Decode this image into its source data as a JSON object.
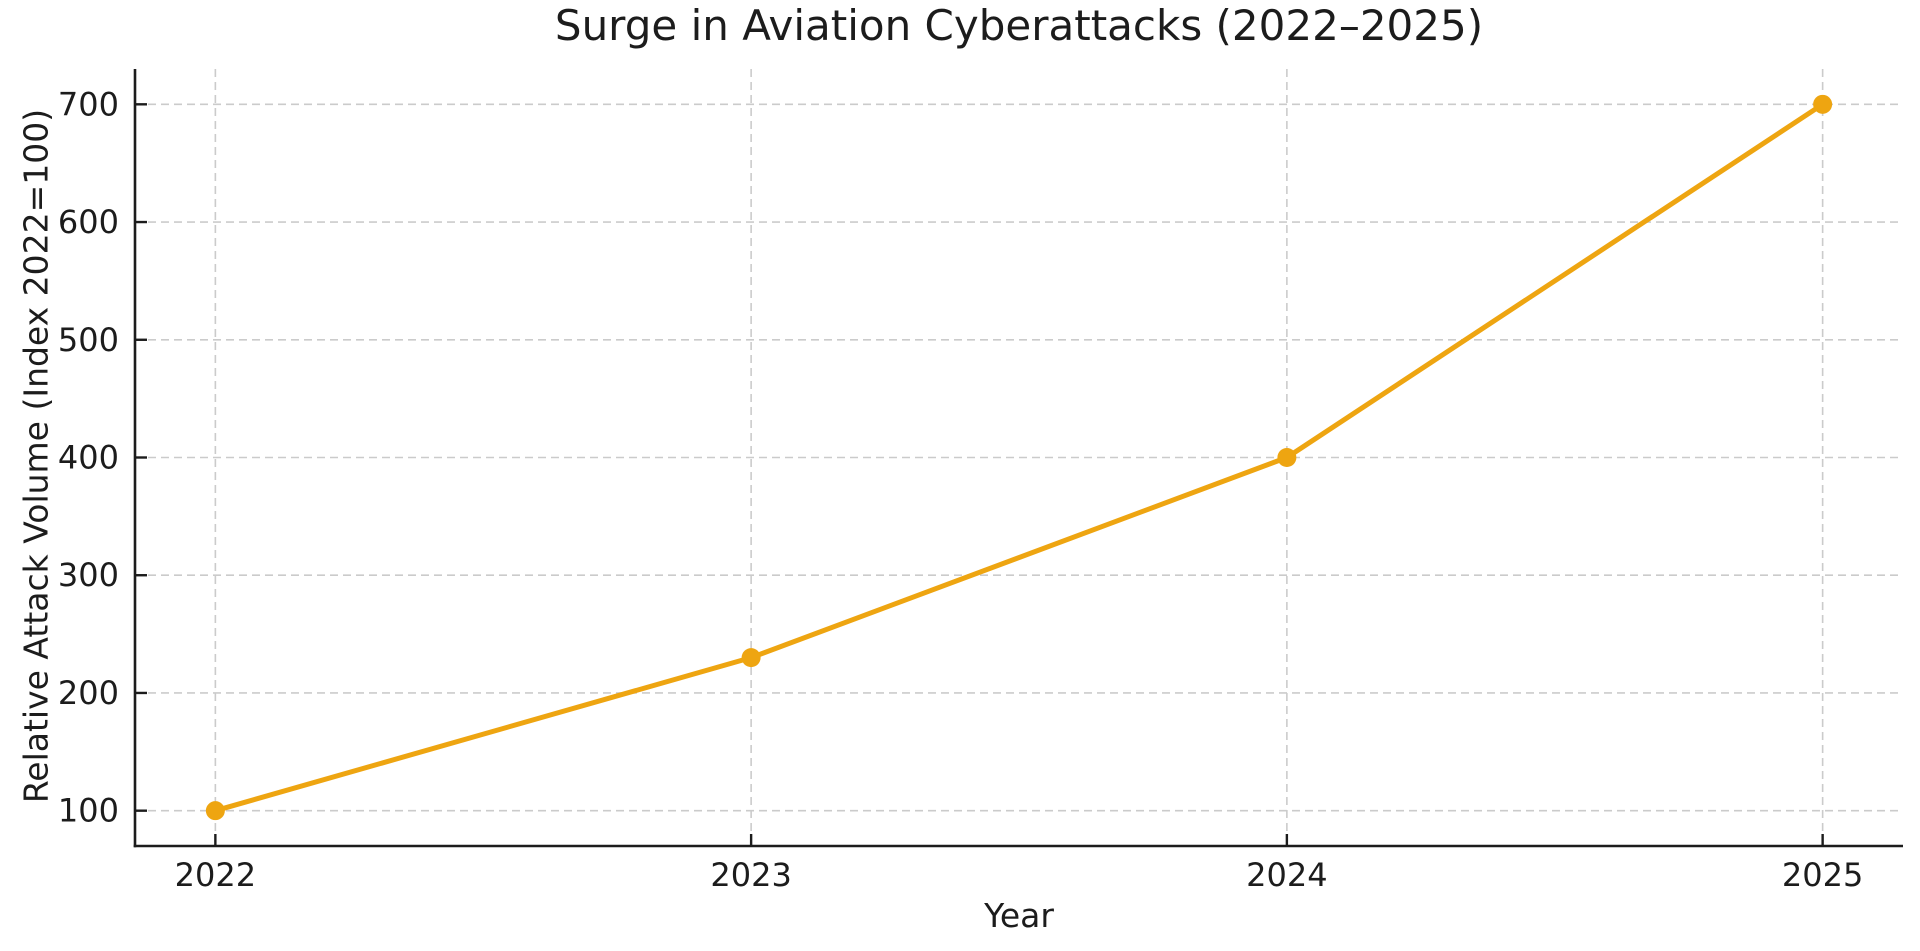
{
  "chart_data": {
    "type": "line",
    "title": "Surge in Aviation Cyberattacks (2022–2025)",
    "xlabel": "Year",
    "ylabel": "Relative Attack Volume (Index 2022=100)",
    "x": [
      2022,
      2023,
      2024,
      2025
    ],
    "series": [
      {
        "name": "Relative Attack Volume (Index 2022=100)",
        "values": [
          100,
          230,
          400,
          700
        ]
      }
    ],
    "xticks": [
      2022,
      2023,
      2024,
      2025
    ],
    "yticks": [
      100,
      200,
      300,
      400,
      500,
      600,
      700
    ],
    "xlim": [
      2021.85,
      2025.15
    ],
    "ylim": [
      70,
      730
    ],
    "grid": true,
    "grid_style": "dashed",
    "legend_position": "none",
    "line_color": "#EEA511",
    "marker": "circle",
    "background_color": "#ffffff",
    "grid_color": "#cbcbcb",
    "axis_color": "#1c1c1c"
  }
}
